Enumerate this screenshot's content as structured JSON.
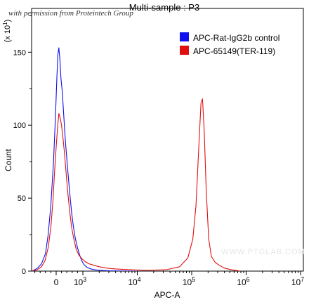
{
  "header": {
    "title": "Multi-sample : P3",
    "permission_note": "with permission from Proteintech Group"
  },
  "watermark": "WWW.PTGLAB.COM",
  "chart_data": {
    "type": "line",
    "xlabel": "APC-A",
    "ylabel": "Count",
    "y_multiplier_label": "(x 10",
    "y_multiplier_exp": "1",
    "y_multiplier_close": ")",
    "ylim": [
      0,
      18
    ],
    "xscale": "biexponential",
    "x_ticks": [
      {
        "base": "0",
        "exp": ""
      },
      {
        "base": "10",
        "exp": "3"
      },
      {
        "base": "10",
        "exp": "4"
      },
      {
        "base": "10",
        "exp": "5"
      },
      {
        "base": "10",
        "exp": "6"
      },
      {
        "base": "10",
        "exp": "7"
      }
    ],
    "y_ticks": [
      "0",
      "50",
      "100",
      "150"
    ],
    "legend_position": "top-right",
    "series": [
      {
        "name": "APC-Rat-IgG2b control",
        "color": "#1010ee",
        "points": [
          [
            -900,
            0
          ],
          [
            -700,
            0.2
          ],
          [
            -550,
            0.5
          ],
          [
            -400,
            1.2
          ],
          [
            -300,
            2.5
          ],
          [
            -200,
            4.5
          ],
          [
            -100,
            7.5
          ],
          [
            -30,
            10.5
          ],
          [
            20,
            13
          ],
          [
            60,
            14.8
          ],
          [
            100,
            15.3
          ],
          [
            140,
            14.5
          ],
          [
            180,
            13.2
          ],
          [
            230,
            12.3
          ],
          [
            290,
            10.5
          ],
          [
            350,
            8.8
          ],
          [
            420,
            7.2
          ],
          [
            500,
            5.5
          ],
          [
            580,
            4.0
          ],
          [
            650,
            3.0
          ],
          [
            720,
            2.2
          ],
          [
            800,
            1.6
          ],
          [
            880,
            1.1
          ],
          [
            960,
            0.7
          ],
          [
            1050,
            0.45
          ],
          [
            1200,
            0.25
          ],
          [
            1400,
            0.15
          ],
          [
            1700,
            0.08
          ],
          [
            2200,
            0.05
          ],
          [
            3000,
            0.02
          ],
          [
            5000,
            0.01
          ],
          [
            10000,
            0
          ]
        ]
      },
      {
        "name": "APC-65149(TER-119)",
        "color": "#e01010",
        "points": [
          [
            -900,
            0
          ],
          [
            -700,
            0.1
          ],
          [
            -550,
            0.3
          ],
          [
            -420,
            0.7
          ],
          [
            -300,
            1.6
          ],
          [
            -200,
            3.0
          ],
          [
            -120,
            4.8
          ],
          [
            -60,
            6.8
          ],
          [
            0,
            8.5
          ],
          [
            50,
            9.8
          ],
          [
            100,
            10.8
          ],
          [
            150,
            10.5
          ],
          [
            200,
            10.0
          ],
          [
            250,
            9.2
          ],
          [
            300,
            8.3
          ],
          [
            360,
            7.0
          ],
          [
            430,
            5.5
          ],
          [
            500,
            4.2
          ],
          [
            580,
            3.0
          ],
          [
            660,
            2.2
          ],
          [
            750,
            1.5
          ],
          [
            850,
            1.1
          ],
          [
            960,
            0.85
          ],
          [
            1100,
            0.65
          ],
          [
            1300,
            0.5
          ],
          [
            1600,
            0.4
          ],
          [
            2000,
            0.3
          ],
          [
            2800,
            0.2
          ],
          [
            4000,
            0.15
          ],
          [
            7000,
            0.1
          ],
          [
            15000,
            0.05
          ],
          [
            35000,
            0.1
          ],
          [
            60000,
            0.3
          ],
          [
            85000,
            0.9
          ],
          [
            105000,
            2.2
          ],
          [
            120000,
            4.5
          ],
          [
            135000,
            8.5
          ],
          [
            148000,
            11.5
          ],
          [
            158000,
            11.8
          ],
          [
            170000,
            9.5
          ],
          [
            185000,
            5.5
          ],
          [
            205000,
            2.2
          ],
          [
            230000,
            1.0
          ],
          [
            270000,
            0.6
          ],
          [
            320000,
            0.4
          ],
          [
            400000,
            0.2
          ],
          [
            550000,
            0.08
          ],
          [
            800000,
            0
          ]
        ]
      }
    ]
  }
}
